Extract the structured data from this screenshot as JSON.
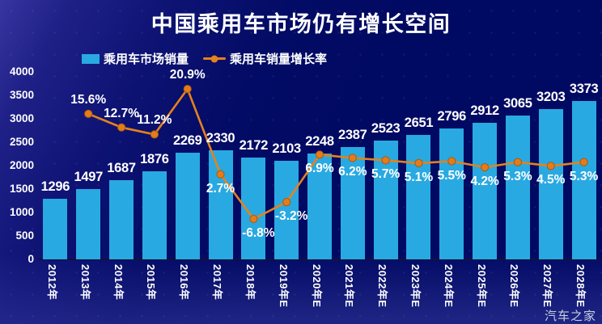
{
  "title": "中国乘用车市场仍有增长空间",
  "legend": {
    "bars_label": "乘用车市场销量",
    "line_label": "乘用车销量增长率"
  },
  "watermark": "汽车之家",
  "colors": {
    "background": "#010a63",
    "bar": "#29a9e1",
    "line": "#e6811c",
    "text": "#ffffff"
  },
  "chart_data": {
    "type": "bar+line",
    "title": "中国乘用车市场仍有增长空间",
    "categories": [
      "2012年",
      "2013年",
      "2014年",
      "2015年",
      "2016年",
      "2017年",
      "2018年",
      "2019年E",
      "2020年E",
      "2021年E",
      "2022年E",
      "2023年E",
      "2024年E",
      "2025年E",
      "2026年E",
      "2027年E",
      "2028年E"
    ],
    "series": [
      {
        "name": "乘用车市场销量",
        "type": "bar",
        "color": "#29a9e1",
        "values": [
          1296,
          1497,
          1687,
          1876,
          2269,
          2330,
          2172,
          2103,
          2248,
          2387,
          2523,
          2651,
          2796,
          2912,
          3065,
          3203,
          3373
        ]
      },
      {
        "name": "乘用车销量增长率",
        "type": "line",
        "unit": "%",
        "color": "#e6811c",
        "values": [
          null,
          15.6,
          12.7,
          11.2,
          20.9,
          2.7,
          -6.8,
          -3.2,
          6.9,
          6.2,
          5.7,
          5.1,
          5.5,
          4.2,
          5.3,
          4.5,
          5.3
        ]
      }
    ],
    "y_axis": {
      "min": 0,
      "max": 4000,
      "step": 500,
      "ticks": [
        0,
        500,
        1000,
        1500,
        2000,
        2500,
        3000,
        3500,
        4000
      ]
    },
    "grid": false,
    "legend_position": "top-left",
    "x_labels_rotated": true
  }
}
